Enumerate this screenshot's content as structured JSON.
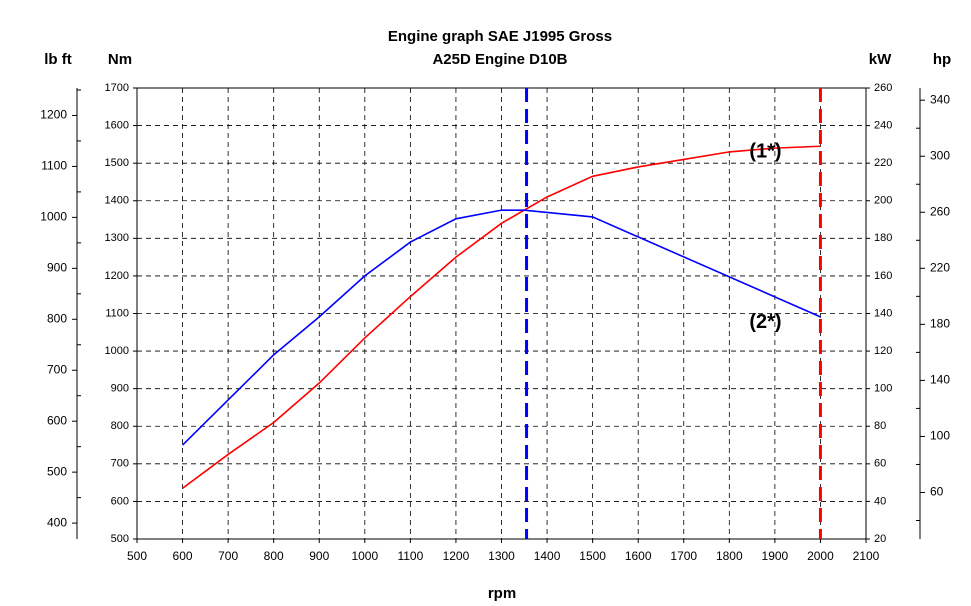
{
  "chart_data": {
    "type": "line",
    "title": [
      "Engine graph SAE J1995 Gross",
      "A25D Engine D10B"
    ],
    "x_label": "rpm",
    "y_label": "Nm",
    "y2_label": "kW",
    "y3_label": "lb ft",
    "y4_label": "hp",
    "xlim": [
      500,
      2100
    ],
    "xticks": [
      500,
      600,
      700,
      800,
      900,
      1000,
      1100,
      1200,
      1300,
      1400,
      1500,
      1600,
      1700,
      1800,
      1900,
      2000,
      2100
    ],
    "ylim": [
      500,
      1700
    ],
    "yticks": [
      500,
      600,
      700,
      800,
      900,
      1000,
      1100,
      1200,
      1300,
      1400,
      1500,
      1600,
      1700
    ],
    "y2lim": [
      20,
      260
    ],
    "y2ticks": [
      20,
      40,
      60,
      80,
      100,
      120,
      140,
      160,
      180,
      200,
      220,
      240,
      260
    ],
    "y3lim": [
      368.8,
      1253.9
    ],
    "y3ticks": [
      400,
      500,
      600,
      700,
      800,
      900,
      1000,
      1100,
      1200
    ],
    "y3minor": [
      450,
      550,
      650,
      750,
      850,
      950,
      1050,
      1150,
      1250
    ],
    "y4lim": [
      26.8,
      348.7
    ],
    "y4ticks": [
      60,
      100,
      140,
      180,
      220,
      260,
      300,
      340
    ],
    "y4minor": [
      40,
      80,
      120,
      160,
      200,
      240,
      280,
      320
    ],
    "grid": true,
    "series": [
      {
        "name": "(1*)",
        "color": "#ff0000",
        "axis": "y2",
        "x": [
          600,
          700,
          800,
          900,
          1000,
          1100,
          1200,
          1300,
          1400,
          1500,
          1600,
          1700,
          1800,
          1900,
          2000
        ],
        "values": [
          47,
          65,
          82,
          103,
          127,
          149,
          170,
          188,
          202,
          213,
          218,
          222,
          226,
          228,
          229
        ]
      },
      {
        "name": "(2*)",
        "color": "#0000ff",
        "x": [
          600,
          700,
          800,
          900,
          1000,
          1100,
          1200,
          1300,
          1350,
          1500,
          2000
        ],
        "values": [
          750,
          870,
          990,
          1091,
          1200,
          1290,
          1352,
          1375,
          1375,
          1357,
          1091
        ]
      }
    ],
    "vlines": [
      {
        "x": 1355,
        "color": "#0000ff"
      },
      {
        "x": 2000,
        "color": "#ff0000"
      }
    ]
  }
}
